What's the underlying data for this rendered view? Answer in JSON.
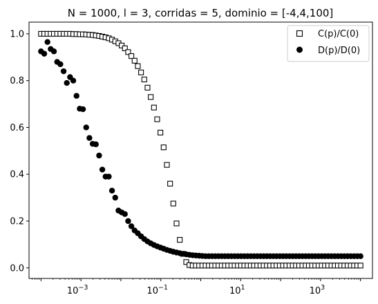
{
  "chart_data": {
    "type": "scatter",
    "title": "N = 1000, l = 3, corridas = 5, dominio = [-4,4,100]",
    "xlabel": "",
    "ylabel": "",
    "xscale": "log",
    "xlim": [
      5.01e-05,
      19950
    ],
    "ylim": [
      -0.045,
      1.05
    ],
    "grid": false,
    "legend_position": "top-right",
    "y_ticks": [
      {
        "value": 0.0,
        "label": "0.0"
      },
      {
        "value": 0.2,
        "label": "0.2"
      },
      {
        "value": 0.4,
        "label": "0.4"
      },
      {
        "value": 0.6,
        "label": "0.6"
      },
      {
        "value": 0.8,
        "label": "0.8"
      },
      {
        "value": 1.0,
        "label": "1.0"
      }
    ],
    "x_ticks": [
      {
        "value": 0.001,
        "base": "10",
        "exp": "−3"
      },
      {
        "value": 0.1,
        "base": "10",
        "exp": "−1"
      },
      {
        "value": 10,
        "base": "10",
        "exp": "1"
      },
      {
        "value": 1000,
        "base": "10",
        "exp": "3"
      }
    ],
    "x_logspace": {
      "start": 0.0001,
      "stop": 10000,
      "num": 100
    },
    "series": [
      {
        "name": "C(p)/C(0)",
        "marker": "square-open",
        "values": [
          1.0,
          1.0,
          1.0,
          1.0,
          1.0,
          1.0,
          1.0,
          1.0,
          1.0,
          1.0,
          0.999,
          0.999,
          0.998,
          0.998,
          0.997,
          0.996,
          0.995,
          0.993,
          0.991,
          0.988,
          0.985,
          0.981,
          0.975,
          0.968,
          0.96,
          0.95,
          0.938,
          0.922,
          0.905,
          0.885,
          0.862,
          0.835,
          0.805,
          0.77,
          0.73,
          0.685,
          0.635,
          0.578,
          0.515,
          0.44,
          0.36,
          0.275,
          0.19,
          0.12,
          0.06,
          0.025,
          0.012,
          0.01,
          0.01,
          0.01,
          0.01,
          0.01,
          0.01,
          0.01,
          0.01,
          0.01,
          0.01,
          0.01,
          0.01,
          0.01,
          0.01,
          0.01,
          0.01,
          0.01,
          0.01,
          0.01,
          0.01,
          0.01,
          0.01,
          0.01,
          0.01,
          0.01,
          0.01,
          0.01,
          0.01,
          0.01,
          0.01,
          0.01,
          0.01,
          0.01,
          0.01,
          0.01,
          0.01,
          0.01,
          0.01,
          0.01,
          0.01,
          0.01,
          0.01,
          0.01,
          0.01,
          0.01,
          0.01,
          0.01,
          0.01,
          0.01,
          0.01,
          0.01,
          0.01,
          0.01
        ]
      },
      {
        "name": "D(p)/D(0)",
        "marker": "circle-filled",
        "values": [
          0.925,
          0.915,
          0.965,
          0.935,
          0.925,
          0.88,
          0.87,
          0.84,
          0.79,
          0.815,
          0.8,
          0.735,
          0.68,
          0.678,
          0.6,
          0.555,
          0.53,
          0.528,
          0.48,
          0.42,
          0.39,
          0.39,
          0.33,
          0.3,
          0.245,
          0.237,
          0.23,
          0.2,
          0.178,
          0.16,
          0.148,
          0.135,
          0.123,
          0.113,
          0.105,
          0.098,
          0.092,
          0.087,
          0.082,
          0.077,
          0.073,
          0.069,
          0.066,
          0.063,
          0.06,
          0.058,
          0.056,
          0.054,
          0.053,
          0.052,
          0.051,
          0.05,
          0.05,
          0.05,
          0.05,
          0.05,
          0.05,
          0.05,
          0.05,
          0.05,
          0.05,
          0.05,
          0.05,
          0.05,
          0.05,
          0.05,
          0.05,
          0.05,
          0.05,
          0.05,
          0.05,
          0.05,
          0.05,
          0.05,
          0.05,
          0.05,
          0.05,
          0.05,
          0.05,
          0.05,
          0.05,
          0.05,
          0.05,
          0.05,
          0.05,
          0.05,
          0.05,
          0.05,
          0.05,
          0.05,
          0.05,
          0.05,
          0.05,
          0.05,
          0.05,
          0.05,
          0.05,
          0.05,
          0.05,
          0.05
        ]
      }
    ]
  }
}
